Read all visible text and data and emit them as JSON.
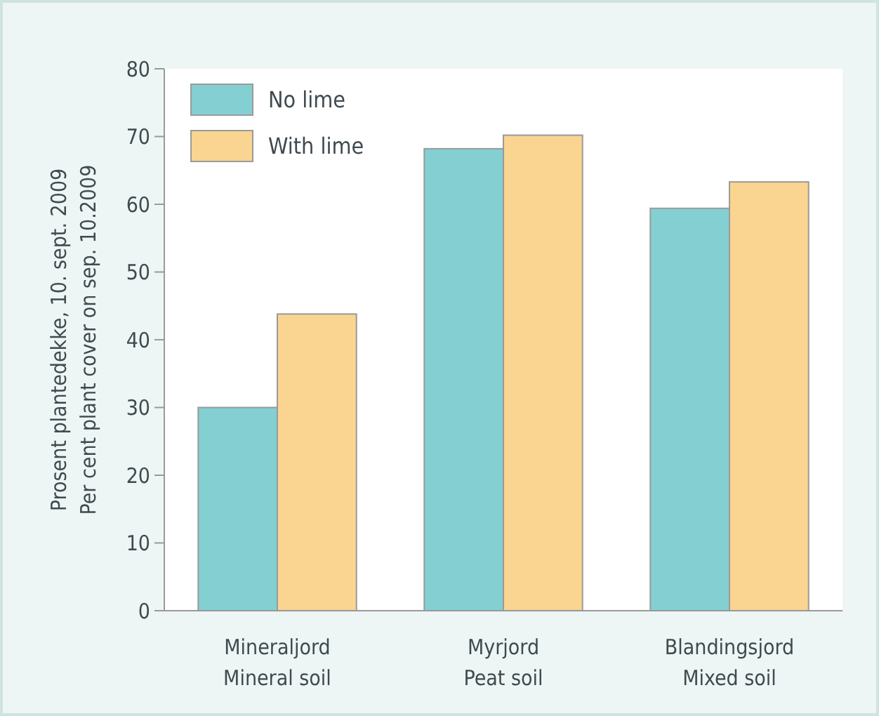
{
  "chart_data": {
    "type": "bar",
    "ylabel": "Prosent plantedekke, 10. sept. 2009\nPer cent plant cover on sep. 10.2009",
    "categories": [
      "Mineraljord\nMineral soil",
      "Myrjord\nPeat soil",
      "Blandingsjord\nMixed soil"
    ],
    "series": [
      {
        "name": "No lime",
        "color": "#84cfd2",
        "values": [
          30,
          68.2,
          59.4
        ]
      },
      {
        "name": "With lime",
        "color": "#fad491",
        "values": [
          43.8,
          70.2,
          63.3
        ]
      }
    ],
    "ylim": [
      0,
      80
    ],
    "yticks": [
      0,
      10,
      20,
      30,
      40,
      50,
      60,
      70,
      80
    ],
    "grid": false,
    "legend": "top left"
  }
}
